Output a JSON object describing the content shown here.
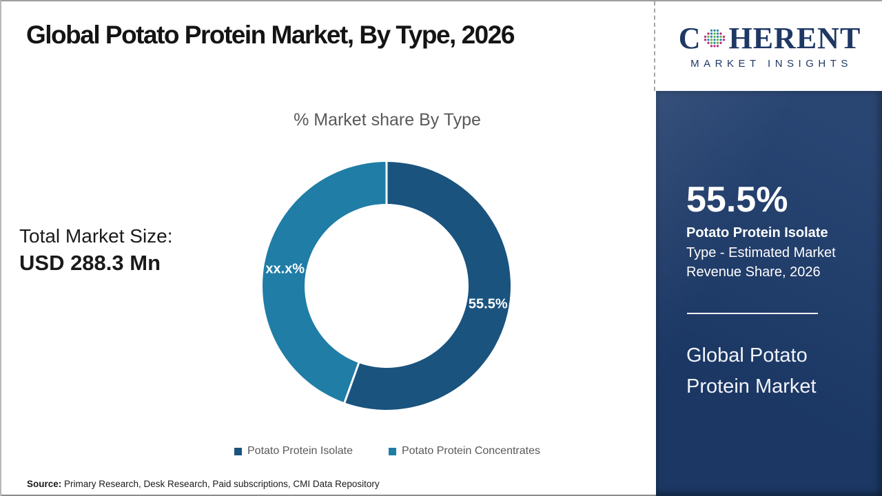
{
  "page": {
    "title": "Global Potato Protein Market, By Type, 2026"
  },
  "logo": {
    "name_start": "C",
    "name_rest": "HERENT",
    "subtitle": "MARKET INSIGHTS",
    "brand_color": "#1f3864"
  },
  "chart_data": {
    "type": "pie",
    "donut": true,
    "title": "% Market share By Type",
    "categories": [
      "Potato Protein Isolate",
      "Potato Protein Concentrates"
    ],
    "values": [
      55.5,
      44.5
    ],
    "slice_labels": [
      "55.5%",
      "xx.x%"
    ],
    "colors": [
      "#1a537e",
      "#1f7da6"
    ],
    "start_angle_deg": 0,
    "legend_position": "bottom"
  },
  "market_size": {
    "label": "Total Market Size:",
    "value": "USD 288.3 Mn"
  },
  "sidebar": {
    "background": "#1e3c6c",
    "stat_value": "55.5%",
    "stat_segment": "Potato Protein Isolate",
    "stat_description": "Type - Estimated Market Revenue Share, 2026",
    "market_name": "Global Potato Protein Market"
  },
  "source": {
    "label": "Source:",
    "text": " Primary Research, Desk Research, Paid subscriptions, CMI Data Repository"
  },
  "colors": {
    "muted_text": "#595959",
    "sidebar_bg": "#1e3c6c",
    "brand_navy": "#1f3864"
  }
}
